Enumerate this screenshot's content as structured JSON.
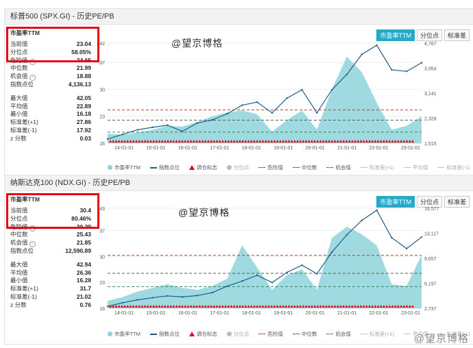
{
  "tabs": [
    "市盈率TTM",
    "分位点",
    "标准差"
  ],
  "watermark": "@望京博格",
  "corner_watermark": "@望京博格",
  "legend": [
    "市盈率TTM",
    "指数点位",
    "调仓标志",
    "分位点",
    "危险值",
    "中位数",
    "机会值",
    "标准差(+1)",
    "平均值",
    "标准差(-1)"
  ],
  "colors": {
    "pe_fill": "#8fd3dc",
    "index_line": "#1f5a8a",
    "danger": "#c0392b",
    "median": "#555555",
    "chance": "#2e8b57",
    "marker": "#e40012",
    "accent": "#27a9c9"
  },
  "panels": [
    {
      "title": "标普500 (SPX.GI) - 历史PE/PB",
      "header": "市盈率TTM",
      "rows_a": [
        [
          "当前值",
          "23.04"
        ],
        [
          "分位点",
          "58.05%"
        ],
        [
          "危险值",
          "24.65"
        ],
        [
          "中位数",
          "21.99"
        ],
        [
          "机会值",
          "18.88"
        ],
        [
          "指数点位",
          "4,136.13"
        ]
      ],
      "rows_b": [
        [
          "最大值",
          "42.05"
        ],
        [
          "平均值",
          "22.89"
        ],
        [
          "最小值",
          "16.18"
        ],
        [
          "标准差(+1)",
          "27.86"
        ],
        [
          "标准差(-1)",
          "17.92"
        ],
        [
          "z 分数",
          "0.03"
        ]
      ],
      "left_axis": [
        "42",
        "37",
        "30",
        "23",
        "16"
      ],
      "right_axis": [
        "4,767",
        "3,954",
        "3,141",
        "2,328",
        "1,515"
      ],
      "x_ticks": [
        "14-01-01",
        "15-01-01",
        "16-01-01",
        "17-01-01",
        "18-01-01",
        "19-01-01",
        "20-01-01",
        "21-01-01",
        "22-01-01",
        "23-01-01"
      ]
    },
    {
      "title": "纳斯达克100 (NDX.GI) - 历史PE/PB",
      "header": "市盈率TTM",
      "rows_a": [
        [
          "当前值",
          "30.4"
        ],
        [
          "分位点",
          "80.46%"
        ],
        [
          "危险值",
          "30.29"
        ],
        [
          "中位数",
          "25.43"
        ],
        [
          "机会值",
          "21.85"
        ],
        [
          "指数点位",
          "12,590.89"
        ]
      ],
      "rows_b": [
        [
          "最大值",
          "42.94"
        ],
        [
          "平均值",
          "26.36"
        ],
        [
          "最小值",
          "16.28"
        ],
        [
          "标准差(+1)",
          "31.7"
        ],
        [
          "标准差(-1)",
          "21.02"
        ],
        [
          "z 分数",
          "0.76"
        ]
      ],
      "left_axis": [
        "43",
        "37",
        "30",
        "23",
        "16"
      ],
      "right_axis": [
        "16,577",
        "13,117",
        "9,657",
        "6,197",
        "2,737"
      ],
      "x_ticks": [
        "14-01-01",
        "15-01-01",
        "16-01-01",
        "17-01-01",
        "18-01-01",
        "19-01-01",
        "20-01-01",
        "21-01-01",
        "22-01-01",
        "23-01-01"
      ]
    }
  ],
  "chart_data": [
    {
      "type": "line",
      "title": "标普500 (SPX.GI) - 历史PE/PB",
      "x": [
        "2013-07",
        "2014-01",
        "2014-07",
        "2015-01",
        "2015-07",
        "2016-01",
        "2016-07",
        "2017-01",
        "2017-07",
        "2018-01",
        "2018-07",
        "2019-01",
        "2019-07",
        "2020-01",
        "2020-04",
        "2020-07",
        "2021-01",
        "2021-07",
        "2022-01",
        "2022-07",
        "2023-01",
        "2023-04"
      ],
      "series": [
        {
          "name": "市盈率TTM",
          "axis": "left",
          "values": [
            18.5,
            18.2,
            18.8,
            19.5,
            20.5,
            20.3,
            21.5,
            23.0,
            24.0,
            24.5,
            23.5,
            19.0,
            22.0,
            24.5,
            19.5,
            30.0,
            38.5,
            34.5,
            26.5,
            19.5,
            20.5,
            23.0
          ]
        },
        {
          "name": "指数点位",
          "axis": "right",
          "values": [
            1650,
            1800,
            1950,
            2030,
            2100,
            1900,
            2170,
            2270,
            2470,
            2750,
            2850,
            2500,
            2980,
            3250,
            2500,
            3250,
            3750,
            4400,
            4700,
            3900,
            3850,
            4130
          ]
        }
      ],
      "reference_lines": {
        "危险值": 24.65,
        "中位数": 21.99,
        "机会值": 18.88
      },
      "ylim_left": [
        16,
        42
      ],
      "ylim_right": [
        1515,
        4767
      ]
    },
    {
      "type": "line",
      "title": "纳斯达克100 (NDX.GI) - 历史PE/PB",
      "x": [
        "2013-07",
        "2014-01",
        "2014-07",
        "2015-01",
        "2015-07",
        "2016-01",
        "2016-07",
        "2017-01",
        "2017-07",
        "2018-01",
        "2018-07",
        "2019-01",
        "2019-07",
        "2020-01",
        "2020-04",
        "2020-07",
        "2021-01",
        "2021-07",
        "2022-01",
        "2022-07",
        "2023-01",
        "2023-04"
      ],
      "series": [
        {
          "name": "市盈率TTM",
          "axis": "left",
          "values": [
            18.0,
            19.0,
            20.5,
            21.5,
            22.5,
            21.5,
            21.0,
            22.0,
            24.0,
            33.0,
            27.0,
            21.0,
            25.0,
            26.5,
            21.0,
            35.0,
            38.0,
            36.0,
            33.0,
            22.5,
            22.0,
            30.4
          ]
        },
        {
          "name": "指数点位",
          "axis": "right",
          "values": [
            3000,
            3500,
            3900,
            4200,
            4450,
            4300,
            4500,
            4900,
            5800,
            6500,
            7300,
            6300,
            7700,
            8700,
            7500,
            10500,
            12900,
            14900,
            16300,
            12500,
            11000,
            12590
          ]
        }
      ],
      "reference_lines": {
        "危险值": 30.29,
        "中位数": 25.43,
        "机会值": 21.85
      },
      "ylim_left": [
        16,
        43
      ],
      "ylim_right": [
        2737,
        16577
      ]
    }
  ]
}
